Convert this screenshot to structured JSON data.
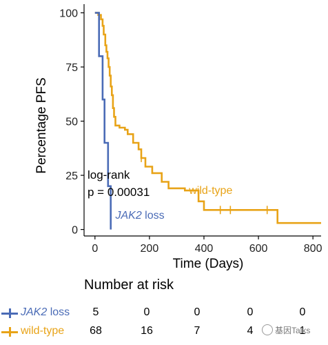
{
  "chart_data": {
    "type": "line",
    "subtype": "kaplan-meier",
    "xlabel": "Time (Days)",
    "ylabel": "Percentage PFS",
    "xlim": [
      -40,
      830
    ],
    "ylim": [
      -3,
      104
    ],
    "x_ticks": [
      "0",
      "200",
      "400",
      "600",
      "800"
    ],
    "y_ticks": [
      "0",
      "25",
      "50",
      "75",
      "100"
    ],
    "x_tick_values": [
      0,
      200,
      400,
      600,
      800
    ],
    "y_tick_values": [
      0,
      25,
      50,
      75,
      100
    ],
    "annotation": {
      "line1": "log-rank",
      "line2": "p = 0.00031"
    },
    "series": [
      {
        "name": "JAK2 loss",
        "color": "#4a6bb6",
        "curve_label": "JAK2 loss",
        "steps": [
          [
            0,
            100
          ],
          [
            15,
            100
          ],
          [
            15,
            80
          ],
          [
            28,
            80
          ],
          [
            28,
            60
          ],
          [
            35,
            60
          ],
          [
            35,
            40
          ],
          [
            48,
            40
          ],
          [
            48,
            20
          ],
          [
            58,
            20
          ],
          [
            58,
            0
          ]
        ],
        "censored_x": []
      },
      {
        "name": "wild-type",
        "color": "#e8a317",
        "curve_label": "wild-type",
        "steps": [
          [
            0,
            100
          ],
          [
            12,
            100
          ],
          [
            12,
            99
          ],
          [
            22,
            99
          ],
          [
            22,
            97
          ],
          [
            28,
            97
          ],
          [
            28,
            94
          ],
          [
            32,
            94
          ],
          [
            32,
            90
          ],
          [
            38,
            90
          ],
          [
            38,
            85
          ],
          [
            42,
            85
          ],
          [
            42,
            82
          ],
          [
            46,
            82
          ],
          [
            46,
            79
          ],
          [
            50,
            79
          ],
          [
            50,
            75
          ],
          [
            54,
            75
          ],
          [
            54,
            71
          ],
          [
            58,
            71
          ],
          [
            58,
            66
          ],
          [
            62,
            66
          ],
          [
            62,
            62
          ],
          [
            66,
            62
          ],
          [
            66,
            56
          ],
          [
            70,
            56
          ],
          [
            70,
            52
          ],
          [
            75,
            52
          ],
          [
            75,
            48
          ],
          [
            90,
            48
          ],
          [
            90,
            47
          ],
          [
            110,
            47
          ],
          [
            110,
            46
          ],
          [
            120,
            46
          ],
          [
            120,
            44
          ],
          [
            140,
            44
          ],
          [
            140,
            40
          ],
          [
            160,
            40
          ],
          [
            160,
            37
          ],
          [
            170,
            37
          ],
          [
            170,
            33
          ],
          [
            185,
            33
          ],
          [
            185,
            29
          ],
          [
            210,
            29
          ],
          [
            210,
            26
          ],
          [
            245,
            26
          ],
          [
            245,
            22
          ],
          [
            270,
            22
          ],
          [
            270,
            19
          ],
          [
            330,
            19
          ],
          [
            330,
            18
          ],
          [
            380,
            18
          ],
          [
            380,
            13
          ],
          [
            400,
            13
          ],
          [
            400,
            9
          ],
          [
            670,
            9
          ],
          [
            670,
            3
          ],
          [
            830,
            3
          ]
        ],
        "censored_x": [
          170,
          460,
          497,
          632
        ]
      }
    ]
  },
  "risk_table": {
    "title": "Number at risk",
    "rows": [
      {
        "pre": "",
        "italic": "JAK2",
        "post": " loss",
        "color": "#4a6bb6",
        "values": [
          "5",
          "0",
          "0",
          "0",
          "0"
        ]
      },
      {
        "pre": "wild-type",
        "italic": "",
        "post": "",
        "color": "#e8a317",
        "values": [
          "68",
          "16",
          "7",
          "4",
          "1"
        ]
      }
    ]
  },
  "watermark": "基因Talks"
}
